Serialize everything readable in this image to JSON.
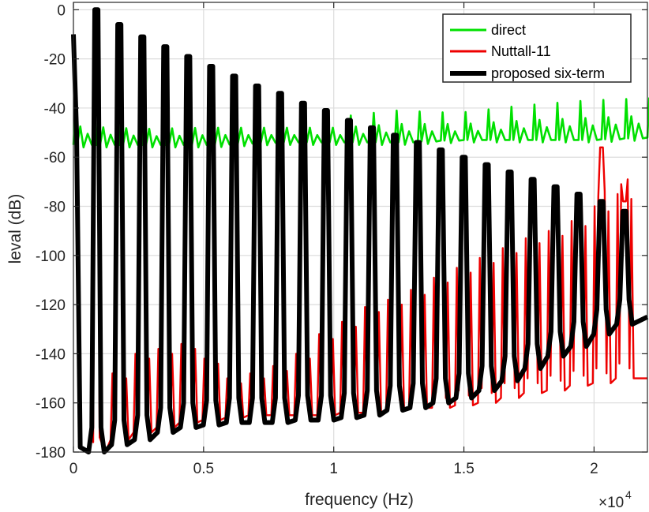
{
  "chart_data": {
    "type": "line",
    "title": "",
    "xlabel": "frequency (Hz)",
    "ylabel": "leval (dB)",
    "x_exponent_label": "×10",
    "x_exponent_power": "4",
    "xlim": [
      0,
      22050
    ],
    "ylim": [
      -180,
      3
    ],
    "xticks": [
      0,
      5000,
      10000,
      15000,
      20000
    ],
    "xtick_labels": [
      "0",
      "0.5",
      "1",
      "1.5",
      "2"
    ],
    "yticks": [
      0,
      -20,
      -40,
      -60,
      -80,
      -100,
      -120,
      -140,
      -160,
      -180
    ],
    "ytick_labels": [
      "0",
      "-20",
      "-40",
      "-60",
      "-80",
      "-100",
      "-120",
      "-140",
      "-160",
      "-180"
    ],
    "grid": true,
    "legend_position": "top-right",
    "harmonic_spacing_hz": 882,
    "fundamental_hz": 882,
    "series": [
      {
        "name": "direct",
        "color": "#00e000",
        "peak_frequencies_hz": [
          2000,
          4200,
          6800,
          9500,
          12400,
          15100,
          17900,
          19300,
          20500,
          21700
        ],
        "peak_levels_db": [
          -42,
          -44,
          -43,
          -44,
          -44,
          -41,
          -42,
          -39,
          -37,
          -36
        ],
        "floor_levels_db": [
          -55,
          -55,
          -55,
          -54,
          -54,
          -54,
          -53,
          -53,
          -53,
          -52
        ]
      },
      {
        "name": "Nuttall-11",
        "color": "#ee0000",
        "peak_frequencies_hz": [
          882,
          1764,
          2646,
          3528,
          4410,
          5292,
          6174,
          7056,
          7938,
          8820,
          9702,
          10584,
          11466,
          12348,
          13230,
          14112,
          14994,
          15876,
          16758,
          17640,
          18522,
          19404,
          20286,
          21168
        ],
        "peak_levels_db": [
          0,
          -6,
          -11,
          -15,
          -19,
          -23,
          -27,
          -31,
          -34,
          -38,
          -41,
          -45,
          -48,
          -51,
          -54,
          -57,
          -60,
          -63,
          -66,
          -69,
          -72,
          -75,
          -56,
          -78
        ],
        "trough_levels_db": [
          -180,
          -148,
          -140,
          -138,
          -136,
          -142,
          -150,
          -148,
          -145,
          -140,
          -132,
          -127,
          -121,
          -118,
          -114,
          -109,
          -105,
          -101,
          -97,
          -93,
          -90,
          -86,
          -80,
          -75
        ],
        "floor_levels_db": [
          -180,
          -175,
          -172,
          -170,
          -168,
          -167,
          -166,
          -165,
          -165,
          -165,
          -165,
          -164,
          -164,
          -163,
          -162,
          -162,
          -161,
          -160,
          -158,
          -156,
          -155,
          -153,
          -152,
          -150
        ]
      },
      {
        "name": "proposed six-term",
        "color": "#000000",
        "peak_frequencies_hz": [
          882,
          1764,
          2646,
          3528,
          4410,
          5292,
          6174,
          7056,
          7938,
          8820,
          9702,
          10584,
          11466,
          12348,
          13230,
          14112,
          14994,
          15876,
          16758,
          17640,
          18522,
          19404,
          20286,
          21168
        ],
        "peak_levels_db": [
          0,
          -6,
          -11,
          -15,
          -19,
          -23,
          -27,
          -31,
          -34,
          -38,
          -41,
          -45,
          -48,
          -51,
          -54,
          -57,
          -60,
          -63,
          -66,
          -69,
          -72,
          -75,
          -78,
          -82
        ],
        "floor_levels_db": [
          -180,
          -177,
          -175,
          -172,
          -170,
          -169,
          -168,
          -168,
          -168,
          -167,
          -167,
          -166,
          -165,
          -163,
          -162,
          -160,
          -158,
          -155,
          -151,
          -146,
          -141,
          -137,
          -132,
          -128
        ]
      }
    ]
  }
}
